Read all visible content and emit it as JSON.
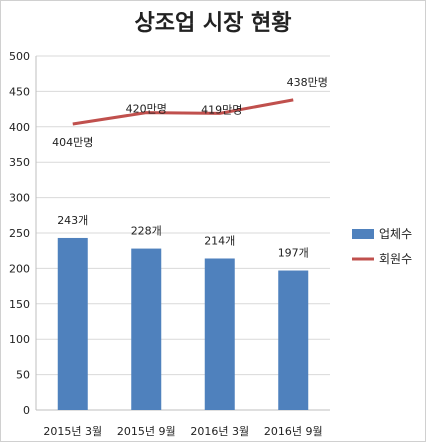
{
  "chart_data": {
    "type": "bar",
    "title": "상조업 시장 현황",
    "categories": [
      "2015년 3월",
      "2015년 9월",
      "2016년 3월",
      "2016년 9월"
    ],
    "ylim": [
      0,
      500
    ],
    "yticks": [
      0,
      50,
      100,
      150,
      200,
      250,
      300,
      350,
      400,
      450,
      500
    ],
    "grid": true,
    "legend_placement": "right",
    "series": [
      {
        "name": "업체수",
        "kind": "bar",
        "color": "#4f81bd",
        "values": [
          243,
          228,
          214,
          197
        ],
        "labels": [
          "243개",
          "228개",
          "214개",
          "197개"
        ]
      },
      {
        "name": "회원수",
        "kind": "line",
        "color": "#c0504d",
        "values": [
          404,
          420,
          419,
          438
        ],
        "labels": [
          "404만명",
          "420만명",
          "419만명",
          "438만명"
        ]
      }
    ]
  }
}
